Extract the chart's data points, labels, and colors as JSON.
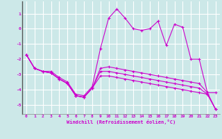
{
  "xlabel": "Windchill (Refroidissement éolien,°C)",
  "background_color": "#cce8e8",
  "grid_color": "#ffffff",
  "line_color": "#cc00cc",
  "xlim": [
    -0.5,
    23.5
  ],
  "ylim": [
    -5.6,
    1.8
  ],
  "yticks": [
    -5,
    -4,
    -3,
    -2,
    -1,
    0,
    1
  ],
  "xticks": [
    0,
    1,
    2,
    3,
    4,
    5,
    6,
    7,
    8,
    9,
    10,
    11,
    12,
    13,
    14,
    15,
    16,
    17,
    18,
    19,
    20,
    21,
    22,
    23
  ],
  "x": [
    0,
    1,
    2,
    3,
    4,
    5,
    6,
    7,
    8,
    9,
    10,
    11,
    12,
    13,
    14,
    15,
    16,
    17,
    18,
    19,
    20,
    21,
    22,
    23
  ],
  "lines": [
    [
      -1.7,
      -2.6,
      -2.8,
      -2.8,
      -3.2,
      -3.5,
      -4.3,
      -4.4,
      -3.8,
      -1.3,
      0.7,
      1.3,
      0.7,
      0.0,
      -0.1,
      0.0,
      0.5,
      -1.1,
      0.3,
      0.1,
      -2.0,
      -2.0,
      -4.2,
      -4.2
    ],
    [
      -1.7,
      -2.6,
      -2.8,
      -2.9,
      -3.3,
      -3.6,
      -4.4,
      -4.5,
      -3.9,
      -2.6,
      -2.5,
      -2.6,
      -2.7,
      -2.8,
      -2.9,
      -3.0,
      -3.1,
      -3.2,
      -3.3,
      -3.4,
      -3.5,
      -3.6,
      -4.2,
      -5.3
    ],
    [
      -1.7,
      -2.6,
      -2.8,
      -2.9,
      -3.3,
      -3.6,
      -4.4,
      -4.5,
      -3.9,
      -2.8,
      -2.8,
      -2.9,
      -3.0,
      -3.1,
      -3.2,
      -3.3,
      -3.4,
      -3.5,
      -3.6,
      -3.7,
      -3.8,
      -3.9,
      -4.3,
      -5.3
    ],
    [
      -1.7,
      -2.6,
      -2.8,
      -2.9,
      -3.3,
      -3.6,
      -4.4,
      -4.5,
      -3.9,
      -3.1,
      -3.1,
      -3.2,
      -3.3,
      -3.4,
      -3.5,
      -3.6,
      -3.7,
      -3.8,
      -3.9,
      -4.0,
      -4.1,
      -4.2,
      -4.3,
      -5.3
    ]
  ]
}
